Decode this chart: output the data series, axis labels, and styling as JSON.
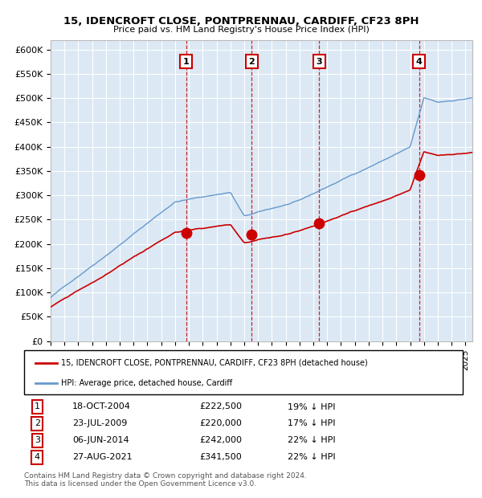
{
  "title": "15, IDENCROFT CLOSE, PONTPRENNAU, CARDIFF, CF23 8PH",
  "subtitle": "Price paid vs. HM Land Registry's House Price Index (HPI)",
  "bg_color": "#dce9f5",
  "grid_color": "#ffffff",
  "ylim": [
    0,
    620000
  ],
  "yticks": [
    0,
    50000,
    100000,
    150000,
    200000,
    250000,
    300000,
    350000,
    400000,
    450000,
    500000,
    550000,
    600000
  ],
  "year_start": 1995,
  "year_end": 2025,
  "transactions": [
    {
      "label": "1",
      "date": "18-OCT-2004",
      "year": 2004.79,
      "price": 222500,
      "pct": "19%"
    },
    {
      "label": "2",
      "date": "23-JUL-2009",
      "year": 2009.55,
      "price": 220000,
      "pct": "17%"
    },
    {
      "label": "3",
      "date": "06-JUN-2014",
      "year": 2014.43,
      "price": 242000,
      "pct": "22%"
    },
    {
      "label": "4",
      "date": "27-AUG-2021",
      "year": 2021.65,
      "price": 341500,
      "pct": "22%"
    }
  ],
  "legend_line1": "15, IDENCROFT CLOSE, PONTPRENNAU, CARDIFF, CF23 8PH (detached house)",
  "legend_line2": "HPI: Average price, detached house, Cardiff",
  "legend_color_red": "#cc0000",
  "legend_color_blue": "#6699cc",
  "footnote": "Contains HM Land Registry data © Crown copyright and database right 2024.\nThis data is licensed under the Open Government Licence v3.0.",
  "hpi_color": "#6699cc",
  "price_color": "#cc0000"
}
